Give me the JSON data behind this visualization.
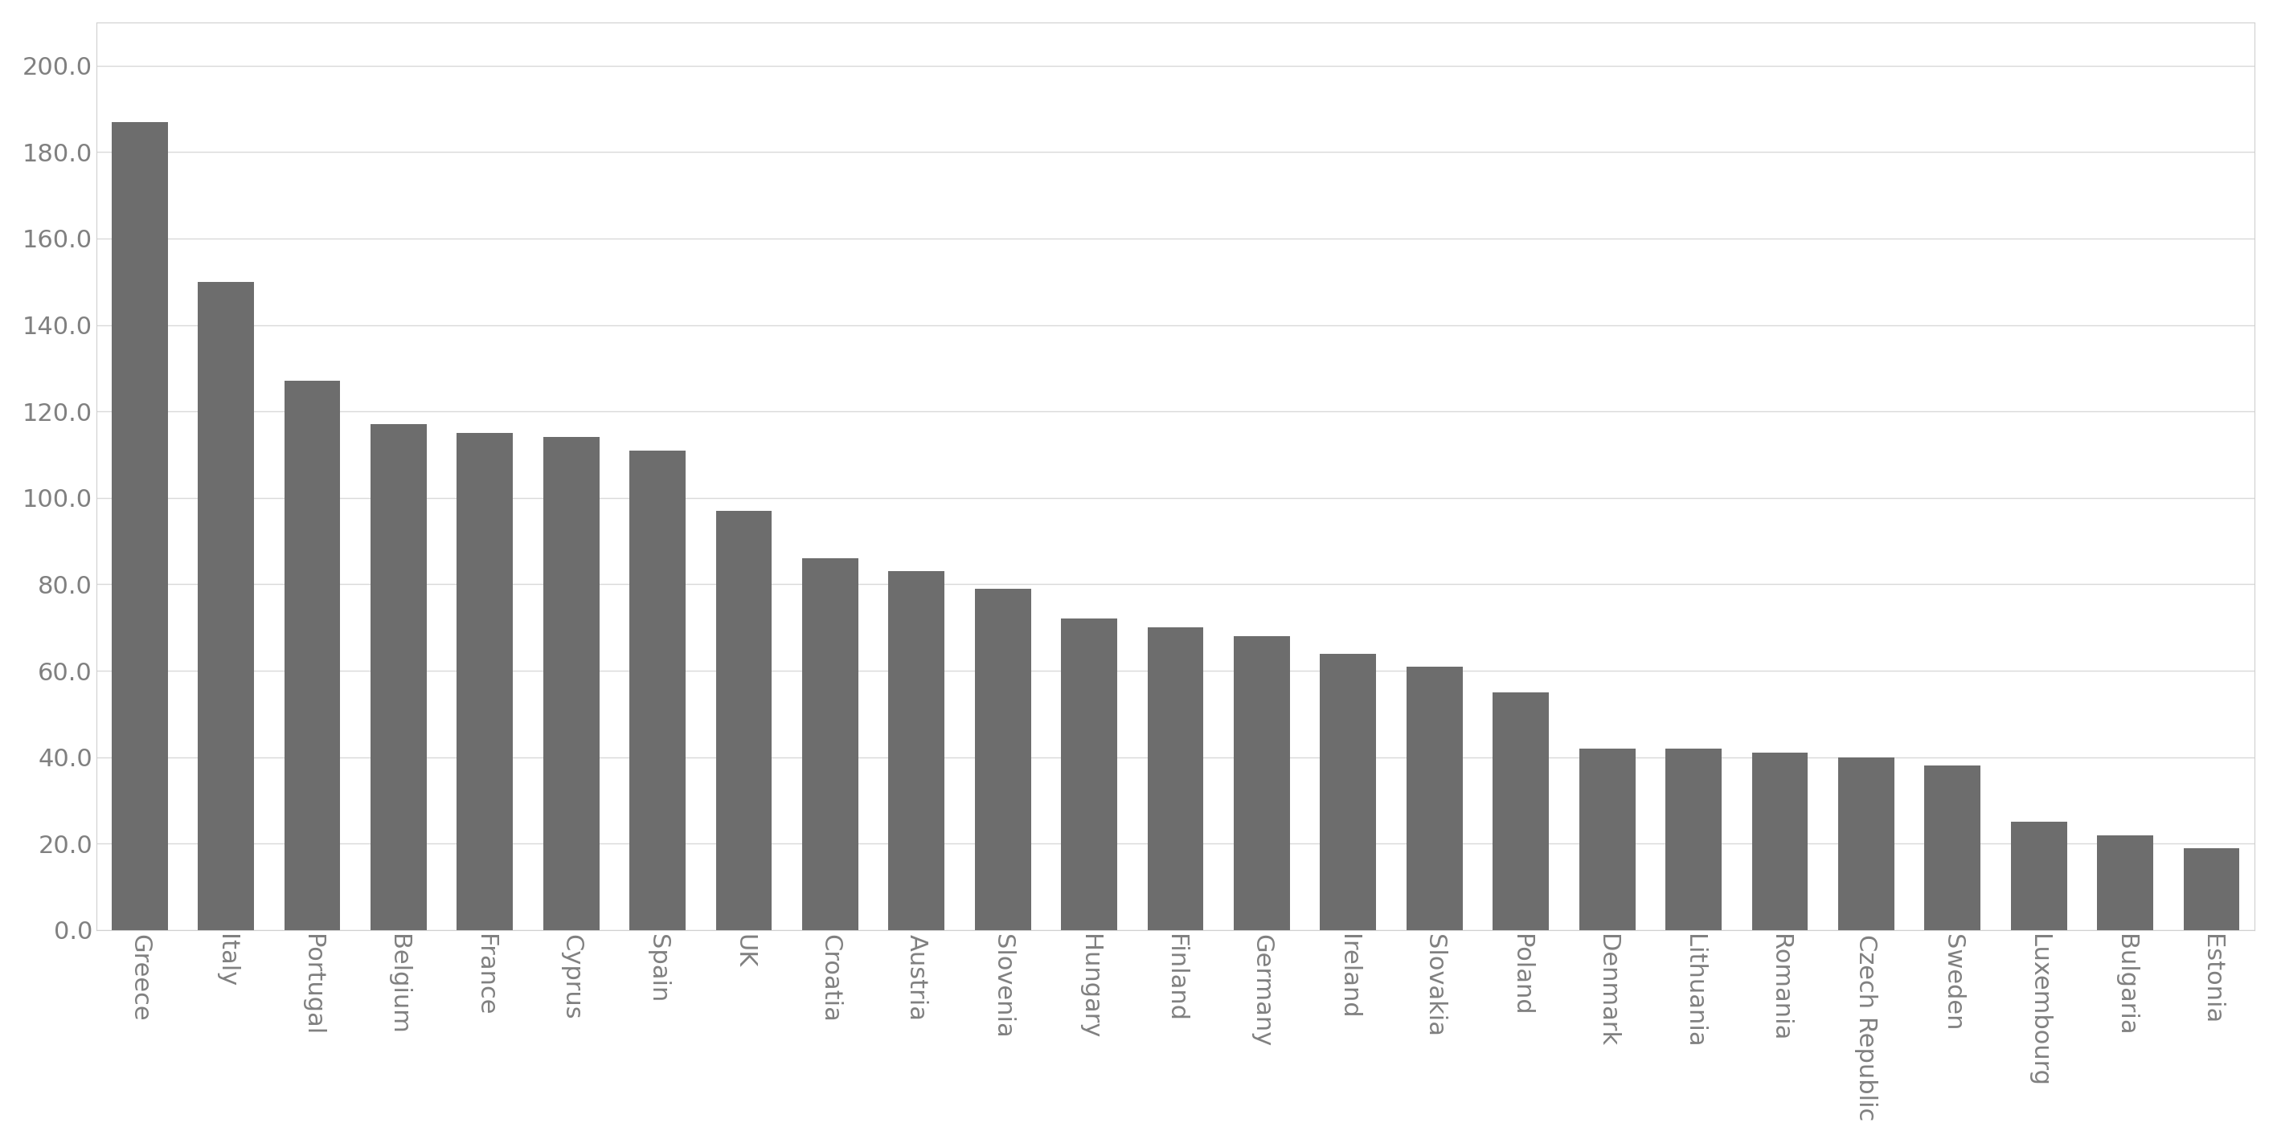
{
  "categories": [
    "Greece",
    "Italy",
    "Portugal",
    "Belgium",
    "France",
    "Cyprus",
    "Spain",
    "UK",
    "Croatia",
    "Austria",
    "Slovenia",
    "Hungary",
    "Finland",
    "Germany",
    "Ireland",
    "Slovakia",
    "Poland",
    "Denmark",
    "Lithuania",
    "Romania",
    "Czech Republic",
    "Sweden",
    "Luxembourg",
    "Bulgaria",
    "Estonia"
  ],
  "values": [
    187.0,
    150.0,
    127.0,
    117.0,
    115.0,
    114.0,
    111.0,
    97.0,
    86.0,
    83.0,
    79.0,
    72.0,
    70.0,
    68.0,
    64.0,
    61.0,
    55.0,
    42.0,
    42.0,
    41.0,
    40.0,
    38.0,
    25.0,
    22.0,
    19.0
  ],
  "bar_color": "#6d6d6d",
  "background_color": "#ffffff",
  "plot_bg_color": "#ffffff",
  "ylim": [
    0,
    210
  ],
  "yticks": [
    0,
    20,
    40,
    60,
    80,
    100,
    120,
    140,
    160,
    180,
    200
  ],
  "ytick_labels": [
    "0.0",
    "20.0",
    "40.0",
    "60.0",
    "80.0",
    "100.0",
    "120.0",
    "140.0",
    "160.0",
    "180.0",
    "200.0"
  ],
  "grid_color": "#d9d9d9",
  "tick_label_color": "#808080",
  "tick_label_fontsize": 22,
  "bar_width": 0.65,
  "border_color": "#d0d0d0"
}
